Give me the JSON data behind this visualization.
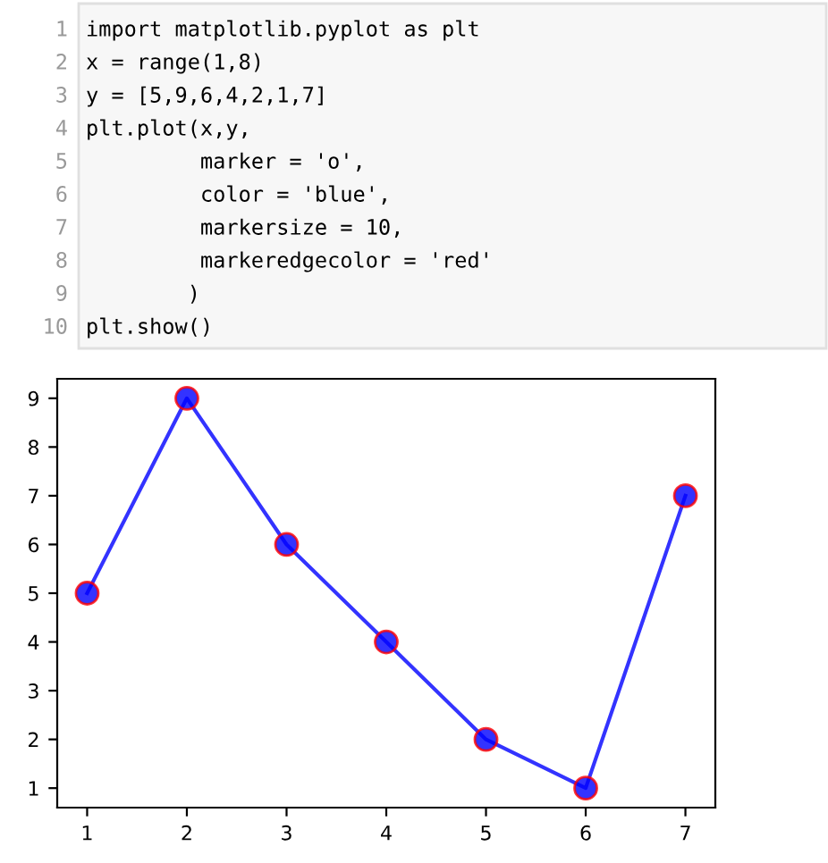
{
  "chart_data": {
    "type": "line",
    "x": [
      1,
      2,
      3,
      4,
      5,
      6,
      7
    ],
    "series": [
      {
        "color": "#0000ff",
        "values": [
          5,
          9,
          6,
          4,
          2,
          1,
          7
        ]
      }
    ],
    "xlim": [
      0.7,
      7.3
    ],
    "ylim": [
      0.6,
      9.4
    ],
    "xticks": [
      1,
      2,
      3,
      4,
      5,
      6,
      7
    ],
    "yticks": [
      1,
      2,
      3,
      4,
      5,
      6,
      7,
      8,
      9
    ],
    "marker": "circle",
    "line_style": "solid",
    "grid": false,
    "legend": false,
    "annotations": [
      "1 import matplotlib.pyplot as plt",
      "2 x = range(1,8)",
      "3 y = [5,9,6,4,2,1,7]",
      "4 plt.plot(x,y,",
      "5          marker = 'o',",
      "6          color = 'blue',",
      "7          markersize = 10,",
      "8          markeredgecolor = 'red'",
      "9         )",
      "10 plt.show()"
    ]
  }
}
